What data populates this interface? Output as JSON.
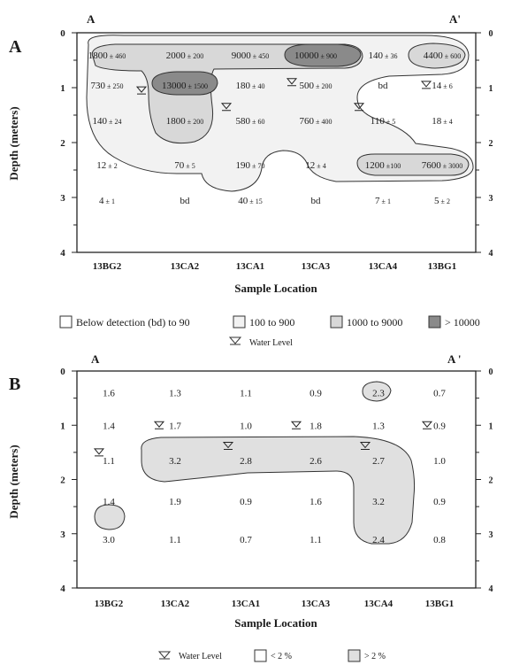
{
  "chart_data": [
    {
      "type": "table",
      "panel_label": "A",
      "section_start": "A",
      "section_end": "A'",
      "xlabel": "Sample Location",
      "ylabel": "Depth (meters)",
      "ylim": [
        0,
        4
      ],
      "yticks": [
        "0",
        "1",
        "2",
        "3",
        "4"
      ],
      "right_yticks": [
        "0",
        "1",
        "2",
        "3",
        "4"
      ],
      "categories": [
        "13BG2",
        "13CA2",
        "13CA1",
        "13CA3",
        "13CA4",
        "13BG1"
      ],
      "depths": [
        0.4,
        0.95,
        1.6,
        2.4,
        3.05
      ],
      "cells": [
        [
          {
            "v": "1800",
            "e": "± 460"
          },
          {
            "v": "2000",
            "e": "± 200"
          },
          {
            "v": "9000",
            "e": "± 450"
          },
          {
            "v": "10000",
            "e": "± 900"
          },
          {
            "v": "140",
            "e": "± 36"
          },
          {
            "v": "4400",
            "e": "± 600"
          }
        ],
        [
          {
            "v": "730",
            "e": "± 250"
          },
          {
            "v": "13000",
            "e": "± 1500"
          },
          {
            "v": "180",
            "e": "± 40"
          },
          {
            "v": "500",
            "e": "± 200"
          },
          {
            "v": "bd",
            "e": ""
          },
          {
            "v": "14",
            "e": "± 6"
          }
        ],
        [
          {
            "v": "140",
            "e": "± 24"
          },
          {
            "v": "1800",
            "e": "± 200"
          },
          {
            "v": "580",
            "e": "± 60"
          },
          {
            "v": "760",
            "e": "± 400"
          },
          {
            "v": "110",
            "e": "± 5"
          },
          {
            "v": "18",
            "e": "± 4"
          }
        ],
        [
          {
            "v": "12",
            "e": "± 2"
          },
          {
            "v": "70",
            "e": "± 5"
          },
          {
            "v": "190",
            "e": "± 70"
          },
          {
            "v": "12",
            "e": "± 4"
          },
          {
            "v": "1200",
            "e": "±100"
          },
          {
            "v": "7600",
            "e": "± 3000"
          }
        ],
        [
          {
            "v": "4",
            "e": "± 1"
          },
          {
            "v": "bd",
            "e": ""
          },
          {
            "v": "40",
            "e": "± 15"
          },
          {
            "v": "bd",
            "e": ""
          },
          {
            "v": "7",
            "e": "± 1"
          },
          {
            "v": "5",
            "e": "± 2"
          }
        ]
      ],
      "water_levels": [
        1.05,
        1.35,
        0.9,
        1.35,
        0.95
      ],
      "legend": [
        "Below detection (bd) to 90",
        "100 to 900",
        "1000 to 9000",
        "> 10000"
      ],
      "legend_colors": [
        "#ffffff",
        "#f2f2f2",
        "#d8d8d8",
        "#8a8a8a"
      ],
      "water_level_label": "Water Level"
    },
    {
      "type": "table",
      "panel_label": "B",
      "section_start": "A",
      "section_end": "A '",
      "xlabel": "Sample Location",
      "ylabel": "Depth (meters)",
      "ylim": [
        0,
        4
      ],
      "yticks": [
        "0",
        "1",
        "2",
        "3",
        "4"
      ],
      "right_yticks": [
        "0",
        "1",
        "2",
        "3",
        "4"
      ],
      "categories": [
        "13BG2",
        "13CA2",
        "13CA1",
        "13CA3",
        "13CA4",
        "13BG1"
      ],
      "depths": [
        0.4,
        1.0,
        1.65,
        2.4,
        3.1
      ],
      "values": [
        [
          "1.6",
          "1.3",
          "1.1",
          "0.9",
          "2.3",
          "0.7"
        ],
        [
          "1.4",
          "1.7",
          "1.0",
          "1.8",
          "1.3",
          "0.9"
        ],
        [
          "1.1",
          "3.2",
          "2.8",
          "2.6",
          "2.7",
          "1.0"
        ],
        [
          "1.4",
          "1.9",
          "0.9",
          "1.6",
          "3.2",
          "0.9"
        ],
        [
          "3.0",
          "1.1",
          "0.7",
          "1.1",
          "2.4",
          "0.8"
        ]
      ],
      "water_levels": [
        1.5,
        1.0,
        1.38,
        1.0,
        1.38,
        1.0
      ],
      "legend": [
        "< 2 %",
        "> 2 %"
      ],
      "legend_colors": [
        "#ffffff",
        "#e0e0e0"
      ],
      "water_level_label": "Water Level"
    }
  ],
  "colors": {
    "fill_light": "#f2f2f2",
    "fill_mid": "#d8d8d8",
    "fill_dark": "#8a8a8a",
    "fill_b": "#e0e0e0",
    "line": "#333333"
  }
}
